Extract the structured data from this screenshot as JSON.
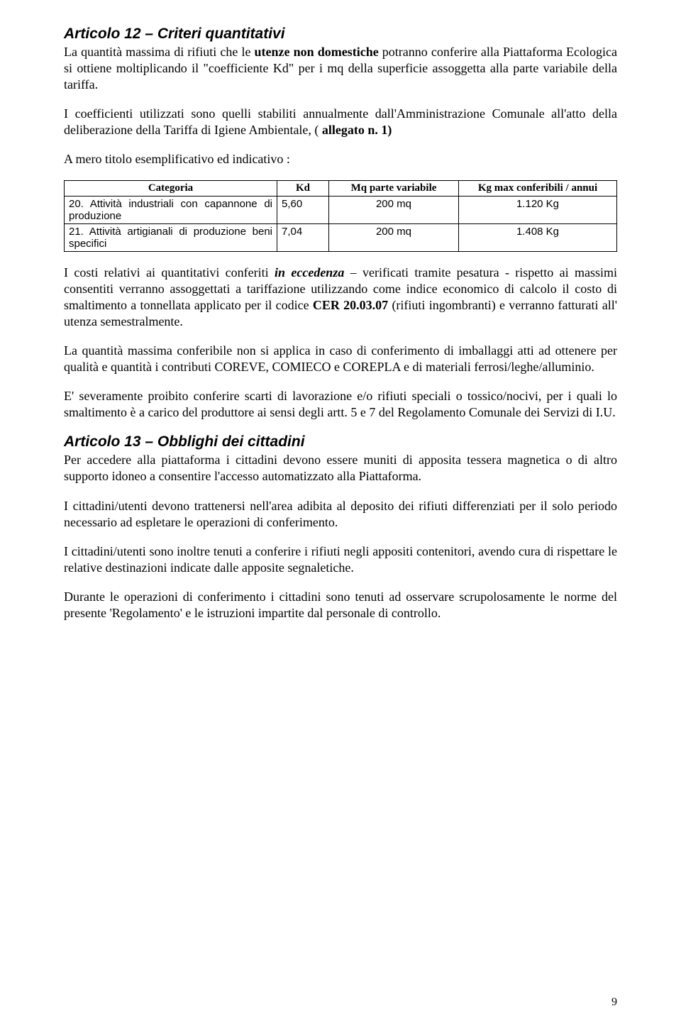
{
  "article12": {
    "heading": "Articolo 12 – Criteri quantitativi",
    "p1_a": "La quantità massima di rifiuti che le ",
    "p1_b": "utenze non domestiche",
    "p1_c": " potranno conferire alla Piattaforma Ecologica si ottiene moltiplicando il \"coefficiente Kd\" per i mq della superficie assoggetta alla parte variabile della tariffa.",
    "p2_a": "I coefficienti utilizzati sono quelli stabiliti annualmente dall'Amministrazione Comunale all'atto della deliberazione della Tariffa di Igiene Ambientale, ( ",
    "p2_b": "allegato n. 1)",
    "p3": "A mero titolo esemplificativo ed indicativo :",
    "table": {
      "headers": {
        "cat": "Categoria",
        "kd": "Kd",
        "mq": "Mq parte variabile",
        "kg": "Kg max conferibili / annui"
      },
      "rows": [
        {
          "cat": "20. Attività industriali con capannone di produzione",
          "kd": "5,60",
          "mq": "200 mq",
          "kg": "1.120 Kg"
        },
        {
          "cat": "21. Attività artigianali di produzione beni specifici",
          "kd": "7,04",
          "mq": "200 mq",
          "kg": "1.408 Kg"
        }
      ]
    },
    "p4_a": "I costi relativi ai quantitativi conferiti ",
    "p4_b": "in eccedenza",
    "p4_c": " – verificati tramite pesatura - rispetto ai massimi consentiti verranno assoggettati a tariffazione utilizzando come indice economico di calcolo il costo di smaltimento a tonnellata applicato per il codice ",
    "p4_d": "CER 20.03.07",
    "p4_e": " (rifiuti ingombranti) e verranno fatturati all' utenza semestralmente.",
    "p5": "La quantità massima conferibile non si applica in caso di conferimento di imballaggi atti ad ottenere per qualità e quantità i contributi COREVE, COMIECO e COREPLA e di materiali ferrosi/leghe/alluminio.",
    "p6": "E' severamente proibito conferire scarti di lavorazione e/o rifiuti speciali o tossico/nocivi, per i quali lo smaltimento è a carico del produttore ai sensi degli artt. 5 e 7 del Regolamento Comunale dei Servizi di I.U."
  },
  "article13": {
    "heading": "Articolo 13 – Obblighi dei cittadini",
    "p1": "Per accedere alla piattaforma i cittadini devono essere muniti di apposita tessera magnetica o di altro supporto idoneo a consentire l'accesso automatizzato alla Piattaforma.",
    "p2": "I cittadini/utenti devono trattenersi nell'area adibita al deposito dei rifiuti differenziati per il solo periodo necessario ad espletare le operazioni di conferimento.",
    "p3": "I cittadini/utenti sono inoltre tenuti a conferire i rifiuti negli appositi contenitori, avendo cura di rispettare le relative destinazioni indicate dalle apposite segnaletiche.",
    "p4": "Durante le operazioni di conferimento i cittadini sono tenuti ad osservare scrupolosamente le norme del presente 'Regolamento' e le  istruzioni impartite dal personale di controllo."
  },
  "pageNumber": "9"
}
